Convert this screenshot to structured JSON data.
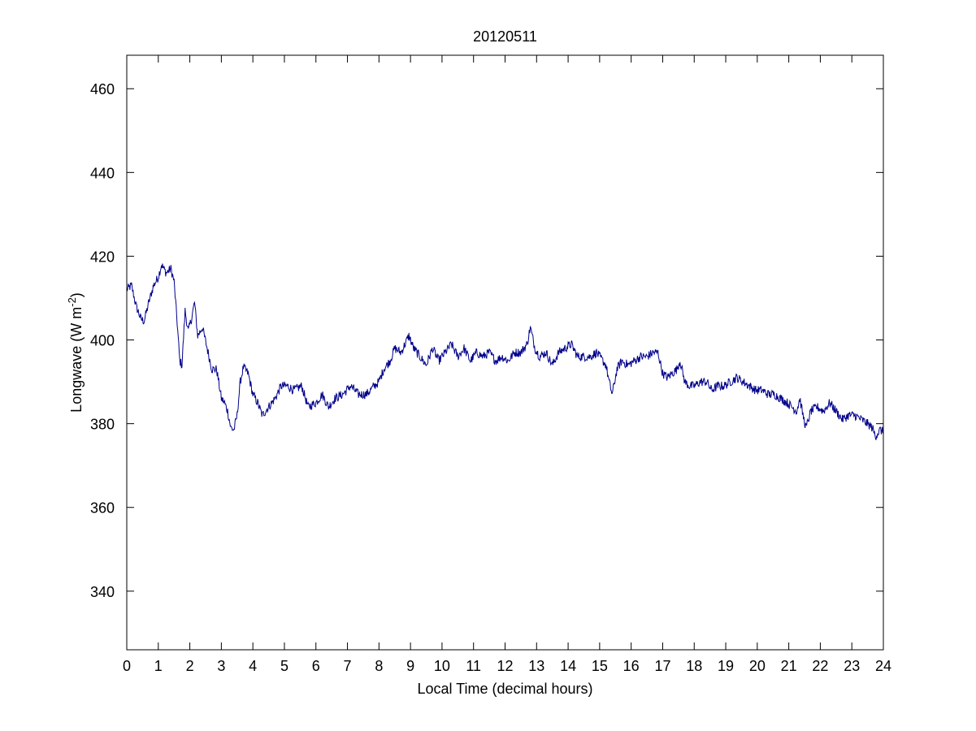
{
  "chart_data": {
    "type": "line",
    "title": "20120511",
    "xlabel": "Local Time (decimal hours)",
    "ylabel": "Longwave (W m-2)",
    "ylabel_parts": {
      "base": "Longwave (W m",
      "superscript": "-2",
      "close": ")"
    },
    "xlim": [
      0,
      24
    ],
    "ylim": [
      326,
      468
    ],
    "xticks": [
      0,
      1,
      2,
      3,
      4,
      5,
      6,
      7,
      8,
      9,
      10,
      11,
      12,
      13,
      14,
      15,
      16,
      17,
      18,
      19,
      20,
      21,
      22,
      23,
      24
    ],
    "yticks": [
      340,
      360,
      380,
      400,
      420,
      440,
      460
    ],
    "grid": false,
    "line_color": "#00008b",
    "series": [
      {
        "points": [
          [
            0.0,
            412
          ],
          [
            0.15,
            413
          ],
          [
            0.3,
            408
          ],
          [
            0.45,
            405
          ],
          [
            0.55,
            404.5
          ],
          [
            0.7,
            409
          ],
          [
            0.85,
            413
          ],
          [
            1.0,
            415
          ],
          [
            1.1,
            418
          ],
          [
            1.25,
            416
          ],
          [
            1.4,
            417
          ],
          [
            1.5,
            414
          ],
          [
            1.6,
            404
          ],
          [
            1.68,
            395
          ],
          [
            1.75,
            394
          ],
          [
            1.85,
            407
          ],
          [
            1.95,
            402
          ],
          [
            2.05,
            405
          ],
          [
            2.15,
            409
          ],
          [
            2.25,
            401
          ],
          [
            2.4,
            403
          ],
          [
            2.55,
            398
          ],
          [
            2.7,
            393
          ],
          [
            2.85,
            393
          ],
          [
            3.0,
            386
          ],
          [
            3.1,
            385
          ],
          [
            3.2,
            383
          ],
          [
            3.3,
            379
          ],
          [
            3.4,
            378.5
          ],
          [
            3.5,
            382
          ],
          [
            3.6,
            390
          ],
          [
            3.7,
            393.5
          ],
          [
            3.85,
            392
          ],
          [
            4.0,
            387
          ],
          [
            4.15,
            385
          ],
          [
            4.3,
            382
          ],
          [
            4.5,
            384
          ],
          [
            4.7,
            386
          ],
          [
            4.9,
            389
          ],
          [
            5.1,
            389
          ],
          [
            5.3,
            388
          ],
          [
            5.55,
            389
          ],
          [
            5.75,
            384
          ],
          [
            6.0,
            385
          ],
          [
            6.2,
            387
          ],
          [
            6.4,
            384
          ],
          [
            6.6,
            386
          ],
          [
            6.85,
            387
          ],
          [
            7.1,
            389
          ],
          [
            7.35,
            387
          ],
          [
            7.6,
            387
          ],
          [
            7.85,
            389
          ],
          [
            8.0,
            390
          ],
          [
            8.15,
            393
          ],
          [
            8.35,
            395
          ],
          [
            8.5,
            398
          ],
          [
            8.7,
            397
          ],
          [
            8.95,
            401
          ],
          [
            9.1,
            398
          ],
          [
            9.3,
            396
          ],
          [
            9.5,
            394
          ],
          [
            9.7,
            398
          ],
          [
            9.9,
            395
          ],
          [
            10.1,
            397
          ],
          [
            10.3,
            399
          ],
          [
            10.5,
            396
          ],
          [
            10.7,
            398
          ],
          [
            10.9,
            395
          ],
          [
            11.1,
            397
          ],
          [
            11.3,
            396
          ],
          [
            11.5,
            397
          ],
          [
            11.7,
            395
          ],
          [
            11.9,
            396
          ],
          [
            12.1,
            395
          ],
          [
            12.3,
            397
          ],
          [
            12.5,
            397
          ],
          [
            12.7,
            399
          ],
          [
            12.8,
            403
          ],
          [
            12.95,
            398
          ],
          [
            13.1,
            396
          ],
          [
            13.3,
            397
          ],
          [
            13.5,
            394
          ],
          [
            13.7,
            397
          ],
          [
            13.9,
            398
          ],
          [
            14.1,
            399
          ],
          [
            14.3,
            396
          ],
          [
            14.5,
            396
          ],
          [
            14.7,
            396
          ],
          [
            14.9,
            397
          ],
          [
            15.1,
            395
          ],
          [
            15.2,
            394
          ],
          [
            15.3,
            390
          ],
          [
            15.4,
            387
          ],
          [
            15.55,
            393
          ],
          [
            15.7,
            395
          ],
          [
            15.9,
            394
          ],
          [
            16.1,
            395
          ],
          [
            16.3,
            396
          ],
          [
            16.5,
            396
          ],
          [
            16.7,
            397
          ],
          [
            16.85,
            397
          ],
          [
            17.0,
            392
          ],
          [
            17.15,
            391
          ],
          [
            17.3,
            392
          ],
          [
            17.45,
            393
          ],
          [
            17.55,
            395
          ],
          [
            17.7,
            390
          ],
          [
            17.85,
            389
          ],
          [
            18.0,
            389
          ],
          [
            18.2,
            390
          ],
          [
            18.4,
            390
          ],
          [
            18.55,
            388
          ],
          [
            18.75,
            389
          ],
          [
            18.95,
            389
          ],
          [
            19.15,
            390
          ],
          [
            19.35,
            391
          ],
          [
            19.55,
            390
          ],
          [
            19.75,
            389
          ],
          [
            19.95,
            388
          ],
          [
            20.15,
            388
          ],
          [
            20.35,
            387
          ],
          [
            20.55,
            387
          ],
          [
            20.75,
            386
          ],
          [
            20.95,
            385
          ],
          [
            21.1,
            384
          ],
          [
            21.25,
            383
          ],
          [
            21.35,
            386
          ],
          [
            21.45,
            382
          ],
          [
            21.55,
            379
          ],
          [
            21.7,
            383
          ],
          [
            21.9,
            384
          ],
          [
            22.1,
            383
          ],
          [
            22.3,
            385
          ],
          [
            22.5,
            383
          ],
          [
            22.7,
            381
          ],
          [
            22.9,
            382
          ],
          [
            23.1,
            382
          ],
          [
            23.3,
            381
          ],
          [
            23.5,
            380
          ],
          [
            23.65,
            379
          ],
          [
            23.75,
            377
          ],
          [
            23.9,
            378.5
          ],
          [
            24.0,
            378
          ]
        ]
      }
    ]
  }
}
